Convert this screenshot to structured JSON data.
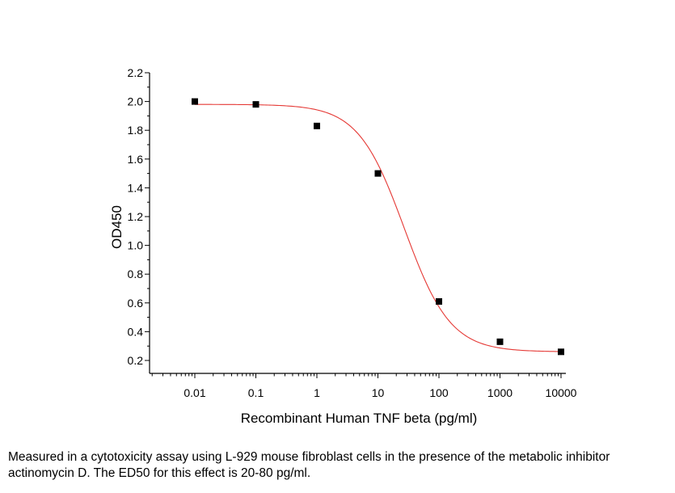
{
  "chart_data": {
    "type": "scatter",
    "xlabel": "Recombinant Human TNF beta (pg/ml)",
    "ylabel": "OD450",
    "x_scale": "log",
    "xlim": [
      0.01,
      10000
    ],
    "ylim": [
      0.2,
      2.2
    ],
    "x_ticks": [
      {
        "value": 0.01,
        "label": "0.01"
      },
      {
        "value": 0.1,
        "label": "0.1"
      },
      {
        "value": 1,
        "label": "1"
      },
      {
        "value": 10,
        "label": "10"
      },
      {
        "value": 100,
        "label": "100"
      },
      {
        "value": 1000,
        "label": "1000"
      },
      {
        "value": 10000,
        "label": "10000"
      }
    ],
    "y_ticks": [
      {
        "value": 0.2,
        "label": "0.2"
      },
      {
        "value": 0.4,
        "label": "0.4"
      },
      {
        "value": 0.6,
        "label": "0.6"
      },
      {
        "value": 0.8,
        "label": "0.8"
      },
      {
        "value": 1.0,
        "label": "1.0"
      },
      {
        "value": 1.2,
        "label": "1.2"
      },
      {
        "value": 1.4,
        "label": "1.4"
      },
      {
        "value": 1.6,
        "label": "1.6"
      },
      {
        "value": 1.8,
        "label": "1.8"
      },
      {
        "value": 2.0,
        "label": "2.0"
      },
      {
        "value": 2.2,
        "label": "2.2"
      }
    ],
    "series": [
      {
        "points": [
          {
            "x": 0.01,
            "y": 2.0
          },
          {
            "x": 0.1,
            "y": 1.98
          },
          {
            "x": 1,
            "y": 1.83
          },
          {
            "x": 10,
            "y": 1.5
          },
          {
            "x": 100,
            "y": 0.61
          },
          {
            "x": 1000,
            "y": 0.33
          },
          {
            "x": 10000,
            "y": 0.26
          }
        ],
        "marker": "square",
        "color": "#000000"
      }
    ],
    "fit_curve": {
      "model": "four-parameter logistic",
      "top": 1.98,
      "bottom": 0.26,
      "ec50": 27,
      "hill": 1.15,
      "color": "#e53935"
    },
    "grid": false,
    "legend": "none"
  },
  "caption": "Measured in a cytotoxicity assay using L-929 mouse fibroblast cells in the presence of the metabolic inhibitor actinomycin D. The ED50 for this effect is 20-80 pg/ml."
}
